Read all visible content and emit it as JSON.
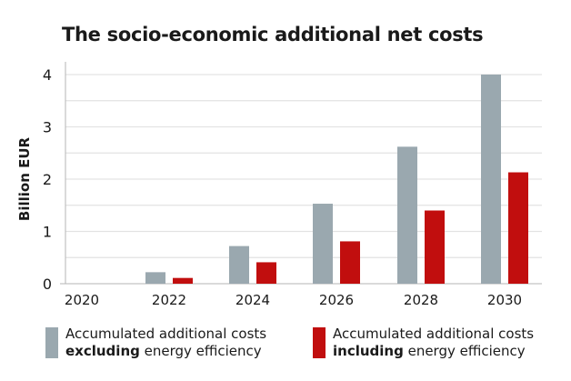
{
  "chart_data": {
    "type": "bar",
    "title": "The socio-economic additional net costs",
    "xlabel": "",
    "ylabel": "Billion EUR",
    "ylim": [
      0,
      4
    ],
    "yticks": [
      "0",
      "1",
      "2",
      "3",
      "4"
    ],
    "grid": true,
    "legend_position": "bottom",
    "categories": [
      "2020",
      "2022",
      "2024",
      "2026",
      "2028",
      "2030"
    ],
    "series": [
      {
        "name": "Accumulated additional costs excluding energy efficiency",
        "legend_line1": "Accumulated additional costs",
        "legend_bold": "excluding",
        "legend_rest": " energy efficiency",
        "color": "#9aa8af",
        "values": [
          0,
          0.22,
          0.72,
          1.53,
          2.62,
          4.0
        ]
      },
      {
        "name": "Accumulated additional costs including energy efficiency",
        "legend_line1": "Accumulated additional costs",
        "legend_bold": "including",
        "legend_rest": " energy efficiency",
        "color": "#c10e0e",
        "values": [
          0,
          0.11,
          0.41,
          0.81,
          1.4,
          2.13
        ]
      }
    ]
  }
}
